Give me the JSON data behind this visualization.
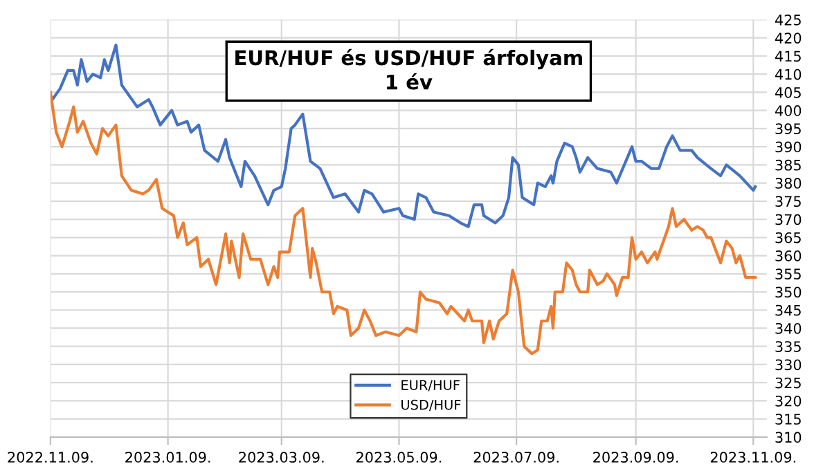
{
  "chart_data": {
    "type": "line",
    "title": "EUR/HUF és USD/HUF árfolyam\n1 év",
    "xlim": [
      "2022-11-09",
      "2023-11-16"
    ],
    "ylim": [
      310,
      425
    ],
    "xticks": [
      {
        "value": "2022-11-09",
        "label": "2022.11.09."
      },
      {
        "value": "2023-01-09",
        "label": "2023.01.09."
      },
      {
        "value": "2023-03-09",
        "label": "2023.03.09."
      },
      {
        "value": "2023-05-09",
        "label": "2023.05.09."
      },
      {
        "value": "2023-07-09",
        "label": "2023.07.09."
      },
      {
        "value": "2023-09-09",
        "label": "2023.09.09."
      },
      {
        "value": "2023-11-09",
        "label": "2023.11.09."
      }
    ],
    "yticks": [
      310,
      315,
      320,
      325,
      330,
      335,
      340,
      345,
      350,
      355,
      360,
      365,
      370,
      375,
      380,
      385,
      390,
      395,
      400,
      405,
      410,
      415,
      420,
      425
    ],
    "grid": true,
    "legend": "bottom",
    "marker": "none",
    "line_style": "solid",
    "series": [
      {
        "name": "EUR/HUF",
        "color": "#4472c4",
        "x": [
          "2022-11-09",
          "2022-11-10",
          "2022-11-14",
          "2022-11-18",
          "2022-11-21",
          "2022-11-23",
          "2022-11-25",
          "2022-11-28",
          "2022-12-01",
          "2022-12-05",
          "2022-12-07",
          "2022-12-09",
          "2022-12-13",
          "2022-12-16",
          "2022-12-24",
          "2022-12-30",
          "2023-01-01",
          "2023-01-05",
          "2023-01-11",
          "2023-01-14",
          "2023-01-19",
          "2023-01-21",
          "2023-01-25",
          "2023-01-28",
          "2023-02-04",
          "2023-02-08",
          "2023-02-10",
          "2023-02-16",
          "2023-02-18",
          "2023-02-23",
          "2023-03-02",
          "2023-03-05",
          "2023-03-09",
          "2023-03-11",
          "2023-03-14",
          "2023-03-16",
          "2023-03-20",
          "2023-03-24",
          "2023-03-29",
          "2023-04-05",
          "2023-04-11",
          "2023-04-18",
          "2023-04-21",
          "2023-04-25",
          "2023-05-01",
          "2023-05-09",
          "2023-05-11",
          "2023-05-17",
          "2023-05-19",
          "2023-05-23",
          "2023-05-27",
          "2023-06-04",
          "2023-06-10",
          "2023-06-14",
          "2023-06-17",
          "2023-06-21",
          "2023-06-22",
          "2023-06-28",
          "2023-07-02",
          "2023-07-05",
          "2023-07-07",
          "2023-07-10",
          "2023-07-12",
          "2023-07-18",
          "2023-07-20",
          "2023-07-24",
          "2023-07-27",
          "2023-07-28",
          "2023-07-30",
          "2023-08-03",
          "2023-08-07",
          "2023-08-09",
          "2023-08-11",
          "2023-08-15",
          "2023-08-20",
          "2023-08-27",
          "2023-08-30",
          "2023-09-07",
          "2023-09-09",
          "2023-09-12",
          "2023-09-17",
          "2023-09-21",
          "2023-09-25",
          "2023-09-28",
          "2023-10-02",
          "2023-10-08",
          "2023-10-11",
          "2023-10-18",
          "2023-10-23",
          "2023-10-26",
          "2023-11-02",
          "2023-11-09",
          "2023-11-10"
        ],
        "values": [
          404,
          403,
          406,
          411,
          411,
          407,
          414,
          408,
          410,
          409,
          414,
          411,
          418,
          407,
          401,
          403,
          401,
          396,
          400,
          396,
          397,
          394,
          396,
          389,
          386,
          392,
          387,
          379,
          386,
          382,
          374,
          378,
          379,
          384,
          395,
          396,
          399,
          386,
          384,
          376,
          377,
          372,
          378,
          377,
          372,
          373,
          371,
          370,
          377,
          376,
          372,
          371,
          369,
          368,
          374,
          374,
          371,
          369,
          371,
          376,
          387,
          385,
          376,
          374,
          380,
          379,
          382,
          380,
          386,
          391,
          390,
          387,
          383,
          387,
          384,
          383,
          380,
          390,
          386,
          386,
          384,
          384,
          390,
          393,
          389,
          389,
          387,
          384,
          382,
          385,
          382,
          378,
          379
        ]
      },
      {
        "name": "USD/HUF",
        "color": "#ed7d31",
        "x": [
          "2022-11-09",
          "2022-11-12",
          "2022-11-15",
          "2022-11-19",
          "2022-11-21",
          "2022-11-23",
          "2022-11-26",
          "2022-11-30",
          "2022-12-03",
          "2022-12-06",
          "2022-12-09",
          "2022-12-13",
          "2022-12-16",
          "2022-12-21",
          "2022-12-27",
          "2022-12-30",
          "2023-01-03",
          "2023-01-06",
          "2023-01-12",
          "2023-01-14",
          "2023-01-17",
          "2023-01-19",
          "2023-01-24",
          "2023-01-26",
          "2023-01-30",
          "2023-02-03",
          "2023-02-08",
          "2023-02-10",
          "2023-02-11",
          "2023-02-15",
          "2023-02-17",
          "2023-02-21",
          "2023-02-26",
          "2023-03-02",
          "2023-03-05",
          "2023-03-07",
          "2023-03-08",
          "2023-03-13",
          "2023-03-16",
          "2023-03-20",
          "2023-03-24",
          "2023-03-25",
          "2023-03-27",
          "2023-03-30",
          "2023-04-03",
          "2023-04-05",
          "2023-04-07",
          "2023-04-12",
          "2023-04-14",
          "2023-04-18",
          "2023-04-21",
          "2023-04-24",
          "2023-04-27",
          "2023-05-02",
          "2023-05-09",
          "2023-05-13",
          "2023-05-18",
          "2023-05-20",
          "2023-05-23",
          "2023-05-30",
          "2023-06-03",
          "2023-06-05",
          "2023-06-12",
          "2023-06-14",
          "2023-06-16",
          "2023-06-21",
          "2023-06-22",
          "2023-06-25",
          "2023-06-27",
          "2023-06-30",
          "2023-07-04",
          "2023-07-07",
          "2023-07-10",
          "2023-07-13",
          "2023-07-17",
          "2023-07-20",
          "2023-07-22",
          "2023-07-25",
          "2023-07-27",
          "2023-07-28",
          "2023-07-29",
          "2023-08-02",
          "2023-08-04",
          "2023-08-07",
          "2023-08-09",
          "2023-08-11",
          "2023-08-15",
          "2023-08-16",
          "2023-08-20",
          "2023-08-23",
          "2023-08-25",
          "2023-08-29",
          "2023-08-30",
          "2023-09-02",
          "2023-09-05",
          "2023-09-07",
          "2023-09-09",
          "2023-09-12",
          "2023-09-15",
          "2023-09-19",
          "2023-09-20",
          "2023-09-26",
          "2023-09-28",
          "2023-09-30",
          "2023-10-04",
          "2023-10-08",
          "2023-10-11",
          "2023-10-14",
          "2023-10-16",
          "2023-10-18",
          "2023-10-23",
          "2023-10-26",
          "2023-10-29",
          "2023-10-31",
          "2023-11-02",
          "2023-11-05",
          "2023-11-08",
          "2023-11-10"
        ],
        "values": [
          405,
          394,
          390,
          397,
          401,
          394,
          397,
          391,
          388,
          395,
          393,
          396,
          382,
          378,
          377,
          378,
          381,
          373,
          371,
          365,
          369,
          363,
          365,
          357,
          359,
          352,
          366,
          358,
          364,
          354,
          366,
          359,
          359,
          352,
          357,
          354,
          361,
          361,
          371,
          373,
          354,
          362,
          358,
          350,
          350,
          344,
          346,
          345,
          338,
          340,
          345,
          342,
          338,
          339,
          338,
          340,
          339,
          350,
          348,
          347,
          344,
          346,
          342,
          345,
          342,
          342,
          336,
          342,
          337,
          342,
          344,
          356,
          350,
          335,
          333,
          334,
          342,
          342,
          346,
          340,
          350,
          350,
          358,
          356,
          352,
          350,
          350,
          356,
          352,
          353,
          355,
          352,
          349,
          354,
          354,
          365,
          359,
          361,
          358,
          361,
          359,
          368,
          373,
          368,
          370,
          367,
          368,
          367,
          365,
          365,
          358,
          364,
          362,
          358,
          360,
          354,
          354,
          354
        ]
      }
    ]
  }
}
